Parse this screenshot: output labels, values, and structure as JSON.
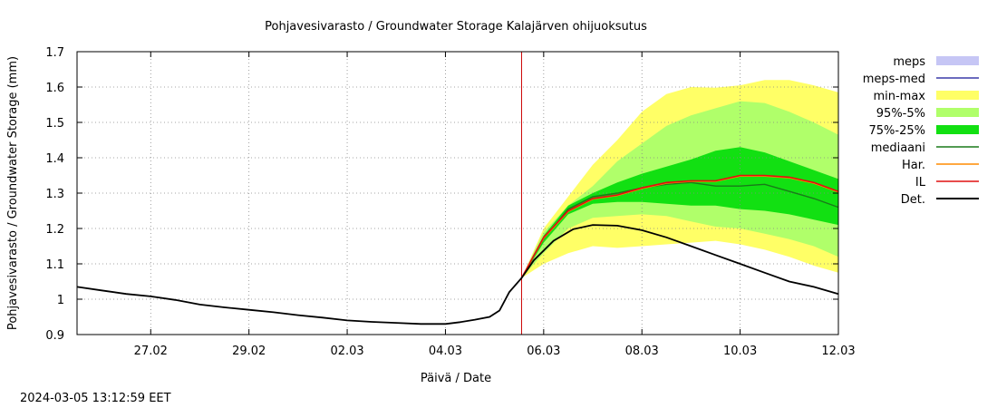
{
  "chart_data": {
    "type": "area",
    "title": "Pohjavesivarasto / Groundwater Storage   Kalajärven ohijuoksutus",
    "xlabel": "Päivä / Date",
    "ylabel": "Pohjavesivarasto / Groundwater Storage (mm)",
    "ylim": [
      0.9,
      1.7
    ],
    "yticks": [
      "0.9",
      "1",
      "1.1",
      "1.2",
      "1.3",
      "1.4",
      "1.5",
      "1.6",
      "1.7"
    ],
    "xlim": [
      -1.5,
      14.0
    ],
    "xticks": [
      {
        "day": 0,
        "label": "27.02"
      },
      {
        "day": 2,
        "label": "29.02"
      },
      {
        "day": 4,
        "label": "02.03"
      },
      {
        "day": 6,
        "label": "04.03"
      },
      {
        "day": 8,
        "label": "06.03"
      },
      {
        "day": 10,
        "label": "08.03"
      },
      {
        "day": 12,
        "label": "10.03"
      },
      {
        "day": 14,
        "label": "12.03"
      }
    ],
    "grid": true,
    "legend_position": "right",
    "forecast_start_day": 7.55,
    "legend": [
      {
        "label": "meps",
        "kind": "box",
        "color": "#c6c6f5"
      },
      {
        "label": "meps-med",
        "kind": "line",
        "color": "#3a3aa8"
      },
      {
        "label": "min-max",
        "kind": "box",
        "color": "#ffff66"
      },
      {
        "label": "95%-5%",
        "kind": "box",
        "color": "#b0ff6a"
      },
      {
        "label": "75%-25%",
        "kind": "box",
        "color": "#12e012"
      },
      {
        "label": "mediaani",
        "kind": "line",
        "color": "#1a7a1a"
      },
      {
        "label": "Har.",
        "kind": "line",
        "color": "#ff8c00"
      },
      {
        "label": "IL",
        "kind": "line",
        "color": "#e01010"
      },
      {
        "label": "Det.",
        "kind": "line",
        "color": "#000000"
      }
    ],
    "series": {
      "det": {
        "x": [
          -1.5,
          -1.0,
          -0.5,
          0.0,
          0.5,
          1.0,
          1.5,
          2.0,
          2.5,
          3.0,
          3.5,
          4.0,
          4.5,
          5.0,
          5.5,
          6.0,
          6.3,
          6.6,
          6.9,
          7.1,
          7.3,
          7.55,
          7.8,
          8.2,
          8.6,
          9.0,
          9.5,
          10.0,
          10.5,
          11.0,
          11.5,
          12.0,
          12.5,
          13.0,
          13.5,
          14.0
        ],
        "y": [
          1.035,
          1.025,
          1.015,
          1.008,
          0.998,
          0.985,
          0.977,
          0.97,
          0.963,
          0.955,
          0.948,
          0.94,
          0.936,
          0.933,
          0.93,
          0.93,
          0.935,
          0.942,
          0.95,
          0.968,
          1.02,
          1.06,
          1.11,
          1.165,
          1.198,
          1.21,
          1.208,
          1.195,
          1.175,
          1.15,
          1.125,
          1.1,
          1.075,
          1.05,
          1.035,
          1.015
        ]
      },
      "forecast_x": [
        7.55,
        8.0,
        8.5,
        9.0,
        9.5,
        10.0,
        10.5,
        11.0,
        11.5,
        12.0,
        12.5,
        13.0,
        13.5,
        14.0
      ],
      "min": [
        1.06,
        1.1,
        1.13,
        1.15,
        1.145,
        1.15,
        1.155,
        1.16,
        1.165,
        1.155,
        1.14,
        1.12,
        1.095,
        1.075
      ],
      "max": [
        1.06,
        1.2,
        1.29,
        1.38,
        1.45,
        1.53,
        1.58,
        1.6,
        1.598,
        1.605,
        1.62,
        1.62,
        1.605,
        1.585
      ],
      "p5": [
        1.06,
        1.13,
        1.2,
        1.23,
        1.235,
        1.24,
        1.235,
        1.22,
        1.205,
        1.2,
        1.185,
        1.17,
        1.15,
        1.12
      ],
      "p95": [
        1.06,
        1.19,
        1.265,
        1.32,
        1.39,
        1.44,
        1.49,
        1.52,
        1.54,
        1.56,
        1.555,
        1.53,
        1.5,
        1.465
      ],
      "p25": [
        1.06,
        1.16,
        1.24,
        1.27,
        1.275,
        1.275,
        1.27,
        1.265,
        1.265,
        1.255,
        1.25,
        1.24,
        1.225,
        1.21
      ],
      "p75": [
        1.06,
        1.18,
        1.265,
        1.3,
        1.33,
        1.355,
        1.375,
        1.395,
        1.42,
        1.43,
        1.415,
        1.39,
        1.365,
        1.34
      ],
      "median": [
        1.06,
        1.17,
        1.255,
        1.29,
        1.3,
        1.315,
        1.325,
        1.33,
        1.32,
        1.32,
        1.325,
        1.305,
        1.285,
        1.26
      ],
      "il": [
        1.06,
        1.175,
        1.25,
        1.285,
        1.295,
        1.315,
        1.33,
        1.335,
        1.335,
        1.35,
        1.35,
        1.345,
        1.33,
        1.305
      ],
      "har": [
        1.06,
        1.172,
        1.248,
        1.283,
        1.293,
        1.313,
        1.328,
        1.333,
        1.333,
        1.348,
        1.348,
        1.343,
        1.328,
        1.303
      ]
    }
  },
  "footer": {
    "timestamp": "2024-03-05 13:12:59 EET"
  }
}
